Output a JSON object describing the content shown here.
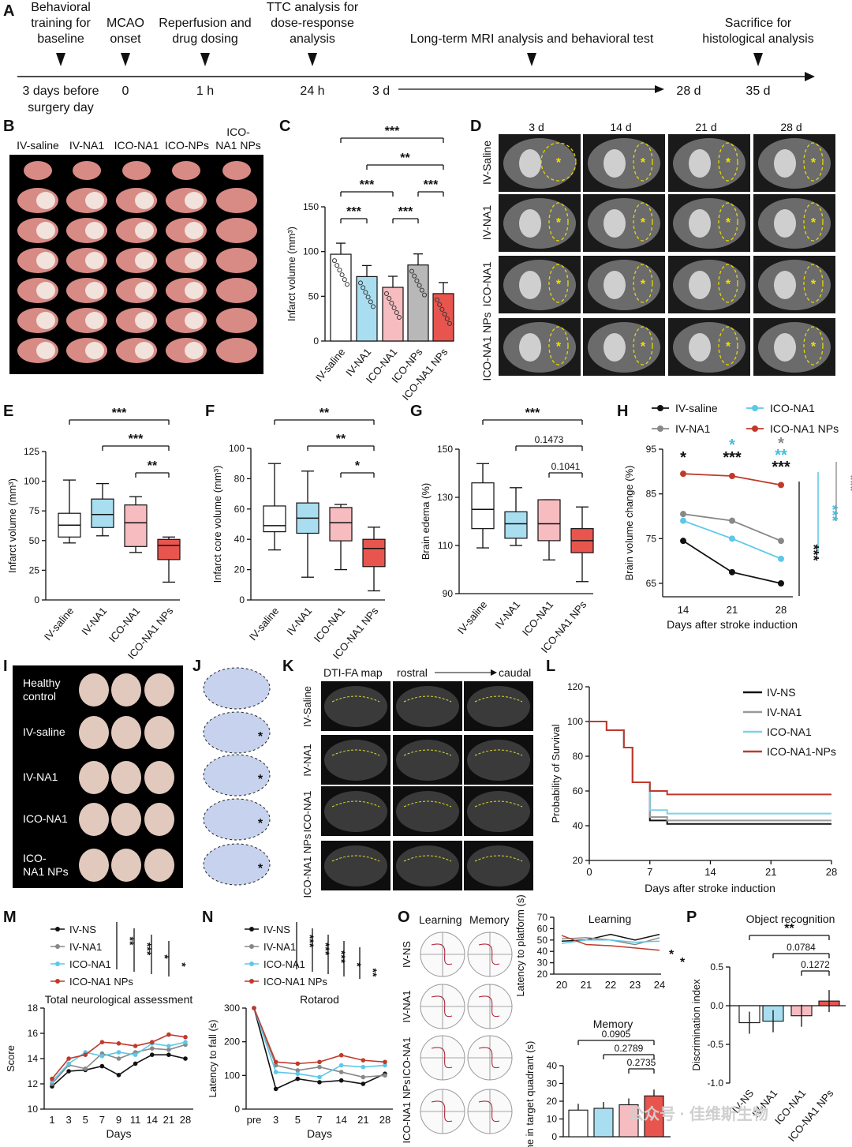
{
  "panelA": {
    "letter": "A",
    "events": [
      {
        "label": [
          "Behavioral",
          "training for",
          "baseline"
        ],
        "time": [
          "3 days before",
          "surgery day"
        ]
      },
      {
        "label": [
          "MCAO",
          "onset"
        ],
        "time": [
          "0"
        ]
      },
      {
        "label": [
          "Reperfusion and",
          "drug dosing"
        ],
        "time": [
          "1 h"
        ]
      },
      {
        "label": [
          "TTC analysis for",
          "dose-response",
          "analysis"
        ],
        "time": [
          "24 h"
        ]
      },
      {
        "label": [
          "Long-term MRI analysis and behavioral test"
        ],
        "time": [
          "3 d"
        ]
      },
      {
        "label": [],
        "time": [
          "28 d"
        ]
      },
      {
        "label": [
          "Sacrifice for",
          "histological analysis"
        ],
        "time": [
          "35 d"
        ]
      }
    ]
  },
  "panelB": {
    "letter": "B",
    "groups": [
      "IV-saline",
      "IV-NA1",
      "ICO-NA1",
      "ICO-NPs",
      "ICO-NA1 NPs"
    ]
  },
  "panelC": {
    "letter": "C",
    "chart_data": {
      "type": "bar",
      "categories": [
        "IV-saline",
        "IV-NA1",
        "ICO-NA1",
        "ICO-NPs",
        "ICO-NA1 NPs"
      ],
      "values": [
        97,
        72,
        60,
        85,
        53
      ],
      "ylabel": "Infarct volume (mm³)",
      "ylim": [
        0,
        150
      ],
      "yticks": [
        "0",
        "50",
        "100",
        "150"
      ],
      "colors": [
        "#ffffff",
        "#a8def0",
        "#f6bcc0",
        "#b8b8b8",
        "#e8554f"
      ],
      "significance": [
        "***",
        "**",
        "***",
        "***",
        "***",
        "***"
      ]
    }
  },
  "panelD": {
    "letter": "D",
    "columns": [
      "3 d",
      "14 d",
      "21 d",
      "28 d"
    ],
    "rows": [
      "IV-Saline",
      "IV-NA1",
      "ICO-NA1",
      "ICO-NA1 NPs"
    ]
  },
  "panelE": {
    "letter": "E",
    "chart_data": {
      "type": "box",
      "categories": [
        "IV-saline",
        "IV-NA1",
        "ICO-NA1",
        "ICO-NA1 NPs"
      ],
      "boxes": [
        {
          "min": 48,
          "q1": 53,
          "median": 63,
          "q3": 73,
          "max": 101
        },
        {
          "min": 54,
          "q1": 61,
          "median": 72,
          "q3": 85,
          "max": 98
        },
        {
          "min": 40,
          "q1": 45,
          "median": 65,
          "q3": 80,
          "max": 87
        },
        {
          "min": 15,
          "q1": 34,
          "median": 46,
          "q3": 51,
          "max": 53
        }
      ],
      "ylabel": "Infarct volume (mm³)",
      "ylim": [
        0,
        125
      ],
      "yticks": [
        "0",
        "25",
        "50",
        "75",
        "100",
        "125"
      ],
      "colors": [
        "#ffffff",
        "#a8def0",
        "#f6bcc0",
        "#e8554f"
      ],
      "significance": [
        "***",
        "***",
        "**"
      ]
    }
  },
  "panelF": {
    "letter": "F",
    "chart_data": {
      "type": "box",
      "categories": [
        "IV-saline",
        "IV-NA1",
        "ICO-NA1",
        "ICO-NA1 NPs"
      ],
      "boxes": [
        {
          "min": 33,
          "q1": 45,
          "median": 49,
          "q3": 62,
          "max": 90
        },
        {
          "min": 15,
          "q1": 44,
          "median": 54,
          "q3": 64,
          "max": 85
        },
        {
          "min": 20,
          "q1": 39,
          "median": 51,
          "q3": 61,
          "max": 63
        },
        {
          "min": 6,
          "q1": 22,
          "median": 34,
          "q3": 40,
          "max": 48
        }
      ],
      "ylabel": "Infarct core volume (mm³)",
      "ylim": [
        0,
        100
      ],
      "yticks": [
        "0",
        "20",
        "40",
        "60",
        "80",
        "100"
      ],
      "colors": [
        "#ffffff",
        "#a8def0",
        "#f6bcc0",
        "#e8554f"
      ],
      "significance": [
        "**",
        "**",
        "*"
      ]
    }
  },
  "panelG": {
    "letter": "G",
    "chart_data": {
      "type": "box",
      "categories": [
        "IV-saline",
        "IV-NA1",
        "ICO-NA1",
        "ICO-NA1 NPs"
      ],
      "boxes": [
        {
          "min": 109,
          "q1": 117,
          "median": 125,
          "q3": 136,
          "max": 144
        },
        {
          "min": 110,
          "q1": 113,
          "median": 119,
          "q3": 124,
          "max": 134
        },
        {
          "min": 104,
          "q1": 112,
          "median": 119,
          "q3": 129,
          "max": 129
        },
        {
          "min": 95,
          "q1": 107,
          "median": 112,
          "q3": 117,
          "max": 126
        }
      ],
      "ylabel": "Brain edema (%)",
      "ylim": [
        90,
        150
      ],
      "yticks": [
        "90",
        "110",
        "130",
        "150"
      ],
      "colors": [
        "#ffffff",
        "#a8def0",
        "#f6bcc0",
        "#e8554f"
      ],
      "significance": [
        "***",
        "0.1473",
        "0.1041"
      ]
    }
  },
  "panelH": {
    "letter": "H",
    "chart_data": {
      "type": "line",
      "x": [
        "14",
        "21",
        "28"
      ],
      "series": [
        {
          "name": "IV-saline",
          "values": [
            74.5,
            67.5,
            65
          ],
          "color": "#111111",
          "marker": "circle"
        },
        {
          "name": "IV-NA1",
          "values": [
            80.5,
            79,
            74.5
          ],
          "color": "#888888",
          "marker": "triangle"
        },
        {
          "name": "ICO-NA1",
          "values": [
            79,
            75,
            70.5
          ],
          "color": "#5cc8e8",
          "marker": "square"
        },
        {
          "name": "ICO-NA1 NPs",
          "values": [
            89.5,
            89,
            87
          ],
          "color": "#c0392b",
          "marker": "diamond"
        }
      ],
      "xlabel": "Days after stroke induction",
      "ylabel": "Brain volume change (%)",
      "ylim": [
        62,
        95
      ],
      "yticks": [
        "65",
        "75",
        "85",
        "95"
      ]
    }
  },
  "panelI": {
    "letter": "I",
    "rows": [
      [
        "Healthy",
        "control"
      ],
      [
        "IV-saline"
      ],
      [
        "IV-NA1"
      ],
      [
        "ICO-NA1"
      ],
      [
        "ICO-",
        "NA1 NPs"
      ]
    ]
  },
  "panelJ": {
    "letter": "J"
  },
  "panelK": {
    "letter": "K",
    "header": "DTI-FA map",
    "rostral": "rostral",
    "caudal": "caudal",
    "rows": [
      "IV-Saline",
      "IV-NA1",
      "ICO-NA1",
      "ICO-NA1 NPs"
    ]
  },
  "panelL": {
    "letter": "L",
    "chart_data": {
      "type": "line",
      "x": [
        0,
        7,
        14,
        21,
        28
      ],
      "series": [
        {
          "name": "IV-NS",
          "color": "#111111",
          "final": 41
        },
        {
          "name": "IV-NA1",
          "color": "#999999",
          "final": 43
        },
        {
          "name": "ICO-NA1",
          "color": "#7fd0ea",
          "final": 47
        },
        {
          "name": "ICO-NA1-NPs",
          "color": "#c0392b",
          "final": 58
        }
      ],
      "xlabel": "Days after stroke induction",
      "ylabel": "Probability of Survival",
      "ylim": [
        20,
        120
      ],
      "yticks": [
        "20",
        "40",
        "60",
        "80",
        "100",
        "120"
      ]
    }
  },
  "panelM": {
    "letter": "M",
    "chart_data": {
      "type": "line",
      "title": "Total neurological assessment",
      "x": [
        "1",
        "3",
        "5",
        "7",
        "9",
        "11",
        "14",
        "21",
        "28"
      ],
      "series": [
        {
          "name": "IV-NS",
          "values": [
            11.8,
            13.0,
            13.1,
            13.4,
            12.7,
            13.6,
            14.3,
            14.3,
            14.0
          ],
          "color": "#111111"
        },
        {
          "name": "IV-NA1",
          "values": [
            12.0,
            13.5,
            13.2,
            14.4,
            14.0,
            14.5,
            14.8,
            14.7,
            15.1
          ],
          "color": "#888888"
        },
        {
          "name": "ICO-NA1",
          "values": [
            12.2,
            13.6,
            14.5,
            14.2,
            14.5,
            14.3,
            15.2,
            15.0,
            15.3
          ],
          "color": "#5cc8e8"
        },
        {
          "name": "ICO-NA1 NPs",
          "values": [
            12.4,
            14.0,
            14.3,
            15.3,
            15.2,
            15.0,
            15.3,
            15.9,
            15.7
          ],
          "color": "#c0392b"
        }
      ],
      "xlabel": "Days",
      "ylabel": "Score",
      "ylim": [
        10,
        18
      ],
      "yticks": [
        "10",
        "12",
        "14",
        "16",
        "18"
      ],
      "significance": [
        "**",
        "***",
        "*",
        "*"
      ]
    }
  },
  "panelN": {
    "letter": "N",
    "chart_data": {
      "type": "line",
      "title": "Rotarod",
      "x": [
        "pre",
        "3",
        "5",
        "7",
        "14",
        "21",
        "28"
      ],
      "series": [
        {
          "name": "IV-NS",
          "values": [
            300,
            60,
            90,
            80,
            85,
            75,
            105
          ],
          "color": "#111111"
        },
        {
          "name": "IV-NA1",
          "values": [
            300,
            130,
            115,
            125,
            110,
            95,
            100
          ],
          "color": "#888888"
        },
        {
          "name": "ICO-NA1",
          "values": [
            300,
            110,
            105,
            95,
            130,
            125,
            130
          ],
          "color": "#5cc8e8"
        },
        {
          "name": "ICO-NA1 NPs",
          "values": [
            300,
            140,
            135,
            140,
            160,
            145,
            140
          ],
          "color": "#c0392b"
        }
      ],
      "xlabel": "Days",
      "ylabel": "Latency to fall (s)",
      "ylim": [
        0,
        300
      ],
      "yticks": [
        "0",
        "100",
        "200",
        "300"
      ],
      "significance": [
        "***",
        "***",
        "***",
        "*",
        "**"
      ]
    }
  },
  "panelO": {
    "letter": "O",
    "learning_label": "Learning",
    "memory_label": "Memory",
    "rows": [
      "IV-NS",
      "IV-NA1",
      "ICO-NA1",
      "ICO-NA1 NPs"
    ],
    "chart_data": [
      {
        "type": "line",
        "title": "Learning",
        "x": [
          "20",
          "21",
          "22",
          "23",
          "24"
        ],
        "series": [
          {
            "name": "IV-NS",
            "values": [
              49,
              50,
              55,
              50,
              55
            ],
            "color": "#111111"
          },
          {
            "name": "IV-NA1",
            "values": [
              51,
              52,
              50,
              46,
              52
            ],
            "color": "#888888"
          },
          {
            "name": "ICO-NA1",
            "values": [
              47,
              50,
              50,
              48,
              49
            ],
            "color": "#5cc8e8"
          },
          {
            "name": "ICO-NA1 NPs",
            "values": [
              54,
              46,
              45,
              43,
              41
            ],
            "color": "#c0392b"
          }
        ],
        "ylabel": "Latency to platform (s)",
        "ylim": [
          20,
          70
        ],
        "yticks": [
          "20",
          "30",
          "40",
          "50",
          "60",
          "70"
        ],
        "significance": [
          "*",
          "*"
        ]
      },
      {
        "type": "bar",
        "title": "Memory",
        "categories": [
          "IV-NS",
          "IV-NA1",
          "ICO-NA1",
          "ICO-NA1 NPs"
        ],
        "values": [
          15,
          16,
          18,
          23
        ],
        "ylabel": "Time in target quadrant (s)",
        "ylim": [
          0,
          40
        ],
        "yticks": [
          "0",
          "10",
          "20",
          "30",
          "40"
        ],
        "colors": [
          "#ffffff",
          "#a8def0",
          "#f6bcc0",
          "#e8554f"
        ],
        "significance": [
          "0.0905",
          "0.2789",
          "0.2735"
        ]
      }
    ]
  },
  "panelP": {
    "letter": "P",
    "chart_data": {
      "type": "bar",
      "title": "Object recognition",
      "categories": [
        "IV-NS",
        "IV-NA1",
        "ICO-NA1",
        "ICO-NA1 NPs"
      ],
      "values": [
        -0.22,
        -0.2,
        -0.13,
        0.06
      ],
      "ylabel": "Discrimination index",
      "ylim": [
        -1.0,
        0.5
      ],
      "yticks": [
        "-1.0",
        "-0.5",
        "0.0",
        "0.5"
      ],
      "colors": [
        "#ffffff",
        "#a8def0",
        "#f6bcc0",
        "#e8554f"
      ],
      "significance": [
        "**",
        "0.0784",
        "0.1272"
      ]
    }
  },
  "watermark": "公众号 · 佳维斯生物"
}
